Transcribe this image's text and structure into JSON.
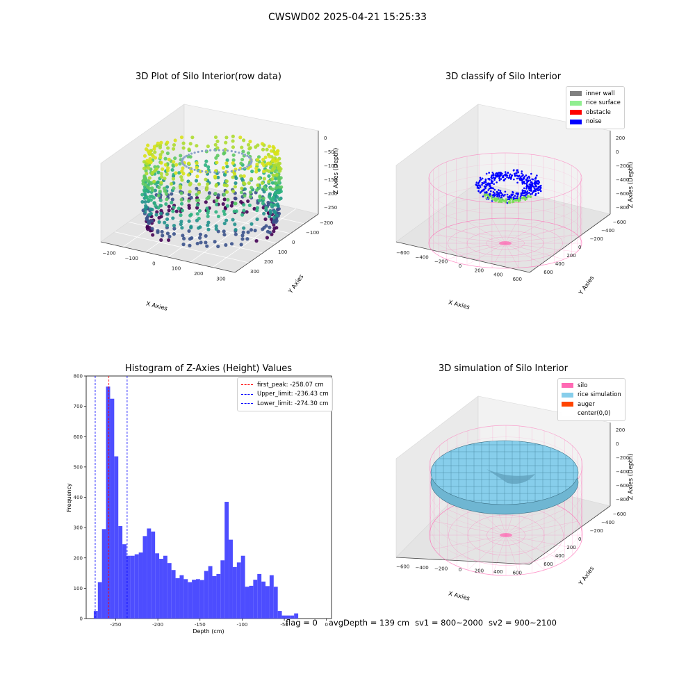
{
  "suptitle": "CWSWD02 2025-04-21 15:25:33",
  "chart_data": [
    {
      "type": "scatter",
      "projection": "3d",
      "title": "3D Plot of Silo Interior(row data)",
      "xlabel": "X Axies",
      "ylabel": "Y Axies",
      "zlabel": "Z Axies (Depth)",
      "xticks": [
        "−200",
        "−100",
        "0",
        "100",
        "200",
        "300"
      ],
      "yticks": [
        "−200",
        "−100",
        "0",
        "100",
        "200",
        "300"
      ],
      "zticks": [
        "0",
        "−50",
        "−100",
        "−150",
        "−200",
        "−250"
      ],
      "colormap": "viridis"
    },
    {
      "type": "scatter",
      "projection": "3d",
      "title": "3D classify of Silo Interior",
      "xlabel": "X Axies",
      "ylabel": "Y Axies",
      "zlabel": "Z Axies (Depth)",
      "xticks": [
        "−600",
        "−400",
        "−200",
        "0",
        "200",
        "400",
        "600"
      ],
      "yticks": [
        "−600",
        "−400",
        "−200",
        "0",
        "200",
        "400",
        "600"
      ],
      "zticks": [
        "200",
        "0",
        "−200",
        "−400",
        "−600",
        "−800"
      ],
      "legend": [
        {
          "label": "inner wall",
          "color": "#808080"
        },
        {
          "label": "rice surface",
          "color": "#90ee90"
        },
        {
          "label": "obstacle",
          "color": "#ff0000"
        },
        {
          "label": "noise",
          "color": "#0000ff"
        }
      ],
      "legend_position": "top-right"
    },
    {
      "type": "bar",
      "subtype": "histogram",
      "title": "Histogram of Z-Axies (Height) Values",
      "xlabel": "Depth (cm)",
      "ylabel": "Frequency",
      "xlim": [
        -285,
        6
      ],
      "ylim": [
        0,
        800
      ],
      "xticks": [
        -250,
        -200,
        -150,
        -100,
        -50,
        0
      ],
      "yticks": [
        0,
        100,
        200,
        300,
        400,
        500,
        600,
        700,
        800
      ],
      "bar_color": "#4d4dff",
      "bin_start": -276,
      "bin_width": 4.85,
      "values": [
        25,
        120,
        295,
        765,
        725,
        535,
        305,
        245,
        207,
        207,
        212,
        218,
        272,
        297,
        287,
        215,
        197,
        207,
        183,
        160,
        133,
        143,
        130,
        120,
        128,
        130,
        127,
        157,
        173,
        140,
        147,
        192,
        385,
        260,
        170,
        185,
        207,
        105,
        108,
        128,
        147,
        122,
        107,
        143,
        105,
        25,
        10,
        10,
        10,
        17
      ],
      "vlines": [
        {
          "label": "first_peak: -258.07 cm",
          "x": -258.07,
          "color": "#ff0000"
        },
        {
          "label": "Upper_limit: -236.43 cm",
          "x": -236.43,
          "color": "#0000ff"
        },
        {
          "label": "Lower_limit: -274.30 cm",
          "x": -274.3,
          "color": "#0000ff"
        }
      ],
      "legend_position": "top-right"
    },
    {
      "type": "surface",
      "projection": "3d",
      "title": "3D simulation of Silo Interior",
      "xlabel": "X Axies",
      "ylabel": "Y Axies",
      "zlabel": "Z Axies (Depth)",
      "xticks": [
        "−600",
        "−400",
        "−200",
        "0",
        "200",
        "400",
        "600"
      ],
      "yticks": [
        "−600",
        "−400",
        "−200",
        "0",
        "200",
        "400",
        "600"
      ],
      "zticks": [
        "200",
        "0",
        "−200",
        "−400",
        "−600",
        "−800"
      ],
      "legend": [
        {
          "label": "silo",
          "color": "#ff69b4"
        },
        {
          "label": "rice simulation",
          "color": "#87ceeb"
        },
        {
          "label": "auger",
          "color": "#ff4500"
        },
        {
          "label": "center(0,0)",
          "color": "#ffffff"
        }
      ],
      "legend_position": "top-right"
    }
  ],
  "status": {
    "flag": "flag = 0",
    "avg_depth": "avgDepth = 139 cm",
    "sv1": "sv1 = 800~2000",
    "sv2": "sv2 = 900~2100"
  }
}
